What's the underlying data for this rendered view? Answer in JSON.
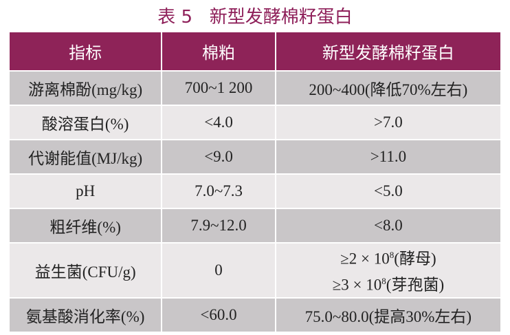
{
  "title": "表 5   新型发酵棉籽蛋白",
  "table": {
    "header": [
      "指标",
      "棉粕",
      "新型发酵棉籽蛋白"
    ],
    "rows": [
      [
        "游离棉酚(mg/kg)",
        "700~1 200",
        "200~400(降低70%左右)"
      ],
      [
        "酸溶蛋白(%)",
        "<4.0",
        ">7.0"
      ],
      [
        "代谢能值(MJ/kg)",
        "<9.0",
        ">11.0"
      ],
      [
        "pH",
        "7.0~7.3",
        "<5.0"
      ],
      [
        "粗纤维(%)",
        "7.9~12.0",
        "<8.0"
      ],
      [
        "益生菌(CFU/g)",
        "0",
        {
          "lines": [
            {
              "text": "≥2 × 10",
              "sup": "8",
              "suffix": "(酵母)"
            },
            {
              "text": "≥3 × 10",
              "sup": "8",
              "suffix": "(芽孢菌)"
            }
          ]
        }
      ],
      [
        "氨基酸消化率(%)",
        "<60.0",
        "75.0~80.0(提高30%左右)"
      ]
    ]
  }
}
